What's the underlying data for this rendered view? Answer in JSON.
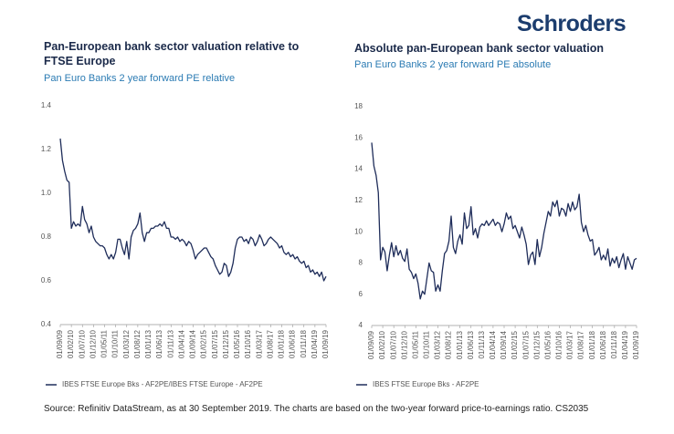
{
  "brand": "Schroders",
  "source": "Source: Refinitiv DataStream, as at 30 September 2019. The charts are based on the two-year forward price-to-earnings ratio. CS2035",
  "chart_data": [
    {
      "type": "line",
      "title": "Pan-European bank sector valuation relative to FTSE Europe",
      "subtitle": "Pan Euro Banks 2 year forward PE relative",
      "categories": [
        "01/09/09",
        null,
        null,
        null,
        null,
        "01/02/10",
        null,
        null,
        null,
        null,
        "01/07/10",
        null,
        null,
        null,
        null,
        "01/12/10",
        null,
        null,
        null,
        null,
        "01/05/11",
        null,
        null,
        null,
        null,
        "01/10/11",
        null,
        null,
        null,
        null,
        "01/03/12",
        null,
        null,
        null,
        null,
        "01/08/12",
        null,
        null,
        null,
        null,
        "01/01/13",
        null,
        null,
        null,
        null,
        "01/06/13",
        null,
        null,
        null,
        null,
        "01/11/13",
        null,
        null,
        null,
        null,
        "01/04/14",
        null,
        null,
        null,
        null,
        "01/09/14",
        null,
        null,
        null,
        null,
        "01/02/15",
        null,
        null,
        null,
        null,
        "01/07/15",
        null,
        null,
        null,
        null,
        "01/12/15",
        null,
        null,
        null,
        null,
        "01/05/16",
        null,
        null,
        null,
        null,
        "01/10/16",
        null,
        null,
        null,
        null,
        "01/03/17",
        null,
        null,
        null,
        null,
        "01/08/17",
        null,
        null,
        null,
        null,
        "01/01/18",
        null,
        null,
        null,
        null,
        "01/06/18",
        null,
        null,
        null,
        null,
        "01/11/18",
        null,
        null,
        null,
        null,
        "01/04/19",
        null,
        null,
        null,
        null,
        "01/09/19"
      ],
      "series": [
        {
          "name": "IBES FTSE Europe Bks - AF2PE/IBES FTSE Europe - AF2PE",
          "color": "#1f2d5a",
          "values": [
            1.25,
            1.15,
            1.1,
            1.06,
            1.05,
            0.84,
            0.87,
            0.85,
            0.86,
            0.85,
            0.94,
            0.88,
            0.86,
            0.82,
            0.85,
            0.8,
            0.78,
            0.77,
            0.76,
            0.76,
            0.75,
            0.72,
            0.7,
            0.72,
            0.7,
            0.73,
            0.79,
            0.79,
            0.75,
            0.72,
            0.78,
            0.7,
            0.8,
            0.83,
            0.84,
            0.86,
            0.91,
            0.82,
            0.78,
            0.82,
            0.82,
            0.84,
            0.84,
            0.85,
            0.85,
            0.86,
            0.85,
            0.87,
            0.84,
            0.84,
            0.8,
            0.8,
            0.79,
            0.8,
            0.78,
            0.79,
            0.78,
            0.76,
            0.78,
            0.77,
            0.74,
            0.7,
            0.72,
            0.73,
            0.74,
            0.75,
            0.75,
            0.73,
            0.71,
            0.7,
            0.67,
            0.65,
            0.63,
            0.64,
            0.68,
            0.67,
            0.62,
            0.64,
            0.68,
            0.75,
            0.79,
            0.8,
            0.8,
            0.78,
            0.79,
            0.77,
            0.8,
            0.79,
            0.76,
            0.78,
            0.81,
            0.79,
            0.76,
            0.77,
            0.79,
            0.8,
            0.79,
            0.78,
            0.77,
            0.75,
            0.76,
            0.73,
            0.72,
            0.73,
            0.71,
            0.72,
            0.7,
            0.71,
            0.69,
            0.68,
            0.69,
            0.66,
            0.67,
            0.64,
            0.65,
            0.63,
            0.64,
            0.62,
            0.64,
            0.6,
            0.62
          ]
        }
      ],
      "ylim": [
        0.4,
        1.4
      ],
      "yticks": [
        0.4,
        0.6,
        0.8,
        {
          "value": 1,
          "label": "1.0"
        },
        1.2,
        1.4
      ],
      "grid": false
    },
    {
      "type": "line",
      "title": "Absolute pan-European bank sector valuation",
      "subtitle": "Pan Euro Banks 2 year forward PE absolute",
      "categories": [
        "01/09/09",
        null,
        null,
        null,
        null,
        "01/02/10",
        null,
        null,
        null,
        null,
        "01/07/10",
        null,
        null,
        null,
        null,
        "01/12/10",
        null,
        null,
        null,
        null,
        "01/05/11",
        null,
        null,
        null,
        null,
        "01/10/11",
        null,
        null,
        null,
        null,
        "01/03/12",
        null,
        null,
        null,
        null,
        "01/08/12",
        null,
        null,
        null,
        null,
        "01/01/13",
        null,
        null,
        null,
        null,
        "01/06/13",
        null,
        null,
        null,
        null,
        "01/11/13",
        null,
        null,
        null,
        null,
        "01/04/14",
        null,
        null,
        null,
        null,
        "01/09/14",
        null,
        null,
        null,
        null,
        "01/02/15",
        null,
        null,
        null,
        null,
        "01/07/15",
        null,
        null,
        null,
        null,
        "01/12/15",
        null,
        null,
        null,
        null,
        "01/05/16",
        null,
        null,
        null,
        null,
        "01/10/16",
        null,
        null,
        null,
        null,
        "01/03/17",
        null,
        null,
        null,
        null,
        "01/08/17",
        null,
        null,
        null,
        null,
        "01/01/18",
        null,
        null,
        null,
        null,
        "01/06/18",
        null,
        null,
        null,
        null,
        "01/11/18",
        null,
        null,
        null,
        null,
        "01/04/19",
        null,
        null,
        null,
        null,
        "01/09/19"
      ],
      "series": [
        {
          "name": "IBES FTSE Europe Bks - AF2PE",
          "color": "#1f2d5a",
          "values": [
            15.7,
            14.2,
            13.6,
            12.5,
            8.2,
            9.0,
            8.7,
            7.5,
            8.5,
            9.3,
            8.4,
            9.1,
            8.5,
            8.8,
            8.3,
            8.1,
            8.9,
            7.6,
            7.4,
            7.0,
            7.3,
            6.7,
            5.7,
            6.2,
            6.0,
            7.0,
            8.0,
            7.5,
            7.4,
            6.2,
            6.6,
            6.2,
            7.5,
            8.6,
            8.8,
            9.4,
            11.0,
            9.0,
            8.6,
            9.4,
            9.8,
            9.2,
            11.2,
            10.2,
            10.4,
            11.6,
            9.8,
            10.2,
            9.6,
            10.3,
            10.5,
            10.4,
            10.7,
            10.4,
            10.6,
            10.8,
            10.4,
            10.6,
            10.5,
            10.0,
            10.5,
            11.2,
            10.8,
            11.0,
            10.2,
            10.4,
            10.0,
            9.6,
            10.3,
            9.8,
            9.2,
            7.9,
            8.5,
            8.7,
            7.9,
            9.5,
            8.4,
            9.0,
            9.9,
            10.6,
            11.3,
            11.0,
            11.9,
            11.6,
            12.0,
            11.0,
            11.5,
            11.4,
            11.0,
            11.8,
            11.3,
            11.9,
            11.4,
            11.6,
            12.4,
            10.6,
            10.0,
            10.4,
            9.8,
            9.4,
            9.5,
            8.5,
            8.7,
            9.0,
            8.2,
            8.5,
            8.2,
            8.9,
            7.8,
            8.3,
            8.0,
            8.4,
            7.7,
            8.2,
            8.6,
            7.6,
            8.4,
            8.0,
            7.6,
            8.2,
            8.3
          ]
        }
      ],
      "ylim": [
        4,
        18
      ],
      "yticks": [
        4,
        6,
        8,
        10,
        12,
        14,
        16,
        18
      ],
      "grid": false
    }
  ]
}
